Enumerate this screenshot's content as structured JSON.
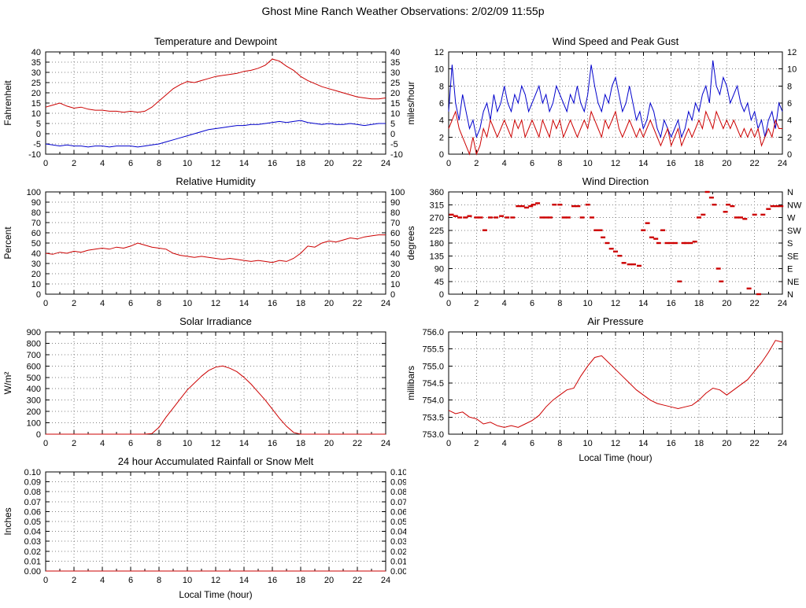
{
  "page_title": "Ghost Mine Ranch Weather Observations: 2/02/09 11:55p",
  "colors": {
    "red": "#cc0000",
    "blue": "#0000cc",
    "frame": "#000000",
    "grid": "#808080"
  },
  "chart_data": [
    {
      "id": "temperature",
      "type": "line",
      "title": "Temperature and Dewpoint",
      "ylabel": "Fahrenheit",
      "xlabel": "",
      "xlim": [
        0,
        24
      ],
      "ylim": [
        -10,
        40
      ],
      "xtickvals": [
        0,
        2,
        4,
        6,
        8,
        10,
        12,
        14,
        16,
        18,
        20,
        22,
        24
      ],
      "ytickvals": [
        -10,
        -5,
        0,
        5,
        10,
        15,
        20,
        25,
        30,
        35,
        40
      ],
      "yticklabels": [
        "-10",
        "-5",
        "0",
        "5",
        "10",
        "15",
        "20",
        "25",
        "30",
        "35",
        "40"
      ],
      "y2labels": [
        "-10",
        "-5",
        "0",
        "5",
        "10",
        "15",
        "20",
        "25",
        "30",
        "35",
        "40"
      ],
      "series": [
        {
          "name": "Temperature",
          "color": "#cc0000",
          "y": [
            13,
            14,
            15,
            13.5,
            12.5,
            13,
            12,
            11.5,
            11.5,
            11,
            11,
            10.5,
            11,
            10.5,
            11,
            13,
            16,
            19,
            22,
            24,
            25.5,
            25,
            26,
            27,
            28,
            28.5,
            29,
            29.5,
            30.5,
            31,
            32,
            33.5,
            36.5,
            35.5,
            33,
            31,
            28,
            26,
            24.5,
            23,
            22,
            21,
            20,
            19,
            18,
            17.5,
            17,
            17,
            17.5
          ]
        },
        {
          "name": "Dewpoint",
          "color": "#0000cc",
          "y": [
            -5,
            -5.5,
            -6,
            -5.5,
            -6,
            -6,
            -6.5,
            -6,
            -6,
            -6.5,
            -6,
            -6,
            -6,
            -6.5,
            -6,
            -5.5,
            -5,
            -4,
            -3,
            -2,
            -1,
            0,
            1,
            2,
            2.5,
            3,
            3.5,
            4,
            4,
            4.5,
            4.5,
            5,
            5.5,
            6,
            5.5,
            6,
            6.5,
            5.5,
            5,
            4.5,
            5,
            4.5,
            4.5,
            5,
            4.5,
            4,
            4.5,
            5,
            5
          ]
        }
      ]
    },
    {
      "id": "windspeed",
      "type": "line",
      "title": "Wind Speed and Peak Gust",
      "ylabel": "miles/hour",
      "xlabel": "",
      "xlim": [
        0,
        24
      ],
      "ylim": [
        0,
        12
      ],
      "xtickvals": [
        0,
        2,
        4,
        6,
        8,
        10,
        12,
        14,
        16,
        18,
        20,
        22,
        24
      ],
      "ytickvals": [
        0,
        2,
        4,
        6,
        8,
        10,
        12
      ],
      "yticklabels": [
        "0",
        "2",
        "4",
        "6",
        "8",
        "10",
        "12"
      ],
      "y2labels": [
        "0",
        "2",
        "4",
        "6",
        "8",
        "10",
        "12"
      ],
      "series": [
        {
          "name": "Peak Gust",
          "color": "#0000cc",
          "y": [
            5,
            10.5,
            6,
            4,
            7,
            5,
            3,
            4,
            2,
            3,
            5,
            6,
            4,
            7,
            5,
            6,
            8,
            6,
            5,
            7,
            6,
            8,
            7,
            5,
            6,
            7,
            8,
            6,
            7,
            5,
            6,
            8,
            7,
            6,
            5,
            7,
            6,
            8,
            6,
            5,
            7,
            10.5,
            8,
            6,
            5,
            7,
            6,
            8,
            9,
            7,
            5,
            6,
            8,
            6,
            4,
            5,
            3,
            4,
            6,
            5,
            3,
            2,
            4,
            3,
            2,
            3,
            4,
            2,
            3,
            5,
            4,
            6,
            5,
            7,
            8,
            6,
            11,
            8,
            7,
            9,
            8,
            6,
            7,
            8,
            6,
            5,
            6,
            4,
            5,
            3,
            4,
            2,
            4,
            5,
            3,
            6,
            5
          ]
        },
        {
          "name": "Wind Speed",
          "color": "#cc0000",
          "y": [
            3,
            4,
            5,
            3,
            2,
            1,
            0,
            2,
            0,
            1,
            3,
            2,
            4,
            3,
            2,
            3,
            4,
            3,
            2,
            4,
            3,
            4,
            2,
            3,
            4,
            3,
            2,
            4,
            3,
            2,
            4,
            3,
            4,
            2,
            3,
            4,
            3,
            2,
            3,
            4,
            3,
            5,
            4,
            3,
            2,
            4,
            3,
            4,
            5,
            3,
            2,
            3,
            4,
            3,
            2,
            3,
            2,
            3,
            4,
            3,
            2,
            1,
            2,
            3,
            1,
            2,
            3,
            1,
            2,
            3,
            2,
            3,
            4,
            3,
            5,
            4,
            3,
            5,
            4,
            3,
            4,
            3,
            4,
            3,
            2,
            3,
            2,
            3,
            2,
            3,
            1,
            2,
            3,
            2,
            4,
            3,
            3
          ]
        }
      ]
    },
    {
      "id": "humidity",
      "type": "line",
      "title": "Relative Humidity",
      "ylabel": "Percent",
      "xlabel": "",
      "xlim": [
        0,
        24
      ],
      "ylim": [
        0,
        100
      ],
      "xtickvals": [
        0,
        2,
        4,
        6,
        8,
        10,
        12,
        14,
        16,
        18,
        20,
        22,
        24
      ],
      "ytickvals": [
        0,
        10,
        20,
        30,
        40,
        50,
        60,
        70,
        80,
        90,
        100
      ],
      "yticklabels": [
        "0",
        "10",
        "20",
        "30",
        "40",
        "50",
        "60",
        "70",
        "80",
        "90",
        "100"
      ],
      "y2labels": [
        "0",
        "10",
        "20",
        "30",
        "40",
        "50",
        "60",
        "70",
        "80",
        "90",
        "100"
      ],
      "series": [
        {
          "name": "Relative Humidity",
          "color": "#cc0000",
          "y": [
            40,
            39,
            41,
            40,
            42,
            41,
            43,
            44,
            45,
            44,
            46,
            45,
            47,
            50,
            48,
            46,
            45,
            44,
            40,
            38,
            37,
            36,
            37,
            36,
            35,
            34,
            35,
            34,
            33,
            32,
            33,
            32,
            31,
            33,
            32,
            35,
            40,
            47,
            46,
            50,
            52,
            51,
            53,
            55,
            54,
            56,
            57,
            58,
            58
          ]
        }
      ]
    },
    {
      "id": "winddir",
      "type": "scatter",
      "title": "Wind Direction",
      "ylabel": "degrees",
      "xlabel": "",
      "xlim": [
        0,
        24
      ],
      "ylim": [
        0,
        360
      ],
      "xtickvals": [
        0,
        2,
        4,
        6,
        8,
        10,
        12,
        14,
        16,
        18,
        20,
        22,
        24
      ],
      "ytickvals": [
        0,
        45,
        90,
        135,
        180,
        225,
        270,
        315,
        360
      ],
      "yticklabels": [
        "0",
        "45",
        "90",
        "135",
        "180",
        "225",
        "270",
        "315",
        "360"
      ],
      "y2labels": [
        "N",
        "NE",
        "E",
        "SE",
        "S",
        "SW",
        "W",
        "NW",
        "N"
      ],
      "series": [
        {
          "name": "Wind Direction",
          "color": "#cc0000",
          "points": [
            [
              0.2,
              280
            ],
            [
              0.5,
              275
            ],
            [
              0.8,
              270
            ],
            [
              1.2,
              270
            ],
            [
              1.5,
              275
            ],
            [
              2.0,
              270
            ],
            [
              2.3,
              270
            ],
            [
              2.6,
              225
            ],
            [
              3.0,
              270
            ],
            [
              3.4,
              270
            ],
            [
              3.8,
              275
            ],
            [
              4.2,
              270
            ],
            [
              4.6,
              270
            ],
            [
              5.0,
              310
            ],
            [
              5.3,
              310
            ],
            [
              5.6,
              305
            ],
            [
              5.9,
              310
            ],
            [
              6.1,
              315
            ],
            [
              6.4,
              320
            ],
            [
              6.7,
              270
            ],
            [
              7.0,
              270
            ],
            [
              7.3,
              270
            ],
            [
              7.6,
              315
            ],
            [
              8.0,
              315
            ],
            [
              8.3,
              270
            ],
            [
              8.6,
              270
            ],
            [
              9.0,
              310
            ],
            [
              9.3,
              310
            ],
            [
              9.6,
              270
            ],
            [
              10.0,
              315
            ],
            [
              10.3,
              270
            ],
            [
              10.6,
              225
            ],
            [
              10.9,
              225
            ],
            [
              11.1,
              200
            ],
            [
              11.4,
              180
            ],
            [
              11.7,
              160
            ],
            [
              12.0,
              150
            ],
            [
              12.3,
              135
            ],
            [
              12.6,
              110
            ],
            [
              13.0,
              105
            ],
            [
              13.3,
              105
            ],
            [
              13.7,
              100
            ],
            [
              14.0,
              225
            ],
            [
              14.3,
              250
            ],
            [
              14.6,
              200
            ],
            [
              14.9,
              195
            ],
            [
              15.1,
              180
            ],
            [
              15.4,
              225
            ],
            [
              15.7,
              180
            ],
            [
              16.0,
              180
            ],
            [
              16.3,
              180
            ],
            [
              16.6,
              45
            ],
            [
              16.9,
              180
            ],
            [
              17.1,
              180
            ],
            [
              17.4,
              180
            ],
            [
              17.7,
              185
            ],
            [
              18.0,
              270
            ],
            [
              18.3,
              280
            ],
            [
              18.6,
              360
            ],
            [
              18.9,
              340
            ],
            [
              19.1,
              315
            ],
            [
              19.4,
              90
            ],
            [
              19.6,
              45
            ],
            [
              19.9,
              290
            ],
            [
              20.1,
              315
            ],
            [
              20.4,
              310
            ],
            [
              20.7,
              270
            ],
            [
              21.0,
              270
            ],
            [
              21.3,
              265
            ],
            [
              21.6,
              20
            ],
            [
              22.0,
              280
            ],
            [
              22.3,
              0
            ],
            [
              22.6,
              280
            ],
            [
              23.0,
              300
            ],
            [
              23.3,
              310
            ],
            [
              23.6,
              310
            ],
            [
              23.9,
              310
            ]
          ]
        }
      ]
    },
    {
      "id": "solar",
      "type": "line",
      "title": "Solar Irradiance",
      "ylabel": "W/m²",
      "xlabel": "",
      "xlim": [
        0,
        24
      ],
      "ylim": [
        0,
        900
      ],
      "xtickvals": [
        0,
        2,
        4,
        6,
        8,
        10,
        12,
        14,
        16,
        18,
        20,
        22,
        24
      ],
      "ytickvals": [
        0,
        100,
        200,
        300,
        400,
        500,
        600,
        700,
        800,
        900
      ],
      "yticklabels": [
        "0",
        "100",
        "200",
        "300",
        "400",
        "500",
        "600",
        "700",
        "800",
        "900"
      ],
      "series": [
        {
          "name": "Solar Irradiance",
          "color": "#cc0000",
          "y": [
            0,
            0,
            0,
            0,
            0,
            0,
            0,
            0,
            0,
            0,
            0,
            0,
            0,
            0,
            0,
            5,
            60,
            150,
            230,
            310,
            390,
            450,
            510,
            560,
            590,
            600,
            580,
            550,
            500,
            440,
            370,
            300,
            220,
            140,
            70,
            15,
            0,
            0,
            0,
            0,
            0,
            0,
            0,
            0,
            0,
            0,
            0,
            0,
            0
          ]
        }
      ]
    },
    {
      "id": "pressure",
      "type": "line",
      "title": "Air Pressure",
      "ylabel": "millibars",
      "xlabel": "Local Time (hour)",
      "xlim": [
        0,
        24
      ],
      "ylim": [
        753.0,
        756.0
      ],
      "xtickvals": [
        0,
        2,
        4,
        6,
        8,
        10,
        12,
        14,
        16,
        18,
        20,
        22,
        24
      ],
      "ytickvals": [
        753.0,
        753.5,
        754.0,
        754.5,
        755.0,
        755.5,
        756.0
      ],
      "yticklabels": [
        "753.0",
        "753.5",
        "754.0",
        "754.5",
        "755.0",
        "755.5",
        "756.0"
      ],
      "series": [
        {
          "name": "Air Pressure",
          "color": "#cc0000",
          "y": [
            753.7,
            753.6,
            753.65,
            753.5,
            753.45,
            753.3,
            753.35,
            753.25,
            753.2,
            753.25,
            753.2,
            753.3,
            753.4,
            753.55,
            753.8,
            754.0,
            754.15,
            754.3,
            754.35,
            754.7,
            755.0,
            755.25,
            755.3,
            755.1,
            754.9,
            754.7,
            754.5,
            754.3,
            754.15,
            754.0,
            753.9,
            753.85,
            753.8,
            753.75,
            753.8,
            753.85,
            754.0,
            754.2,
            754.35,
            754.3,
            754.15,
            754.3,
            754.45,
            754.6,
            754.85,
            755.1,
            755.4,
            755.75,
            755.7
          ]
        }
      ]
    },
    {
      "id": "rainfall",
      "type": "line",
      "title": "24 hour Accumulated Rainfall or Snow Melt",
      "ylabel": "Inches",
      "xlabel": "Local Time (hour)",
      "xlim": [
        0,
        24
      ],
      "ylim": [
        0,
        0.1
      ],
      "xtickvals": [
        0,
        2,
        4,
        6,
        8,
        10,
        12,
        14,
        16,
        18,
        20,
        22,
        24
      ],
      "ytickvals": [
        0,
        0.01,
        0.02,
        0.03,
        0.04,
        0.05,
        0.06,
        0.07,
        0.08,
        0.09,
        0.1
      ],
      "yticklabels": [
        "0.00",
        "0.01",
        "0.02",
        "0.03",
        "0.04",
        "0.05",
        "0.06",
        "0.07",
        "0.08",
        "0.09",
        "0.10"
      ],
      "y2labels": [
        "0.00",
        "0.01",
        "0.02",
        "0.03",
        "0.04",
        "0.05",
        "0.06",
        "0.07",
        "0.08",
        "0.09",
        "0.10"
      ],
      "series": [
        {
          "name": "Accumulated Rainfall",
          "color": "#cc0000",
          "y": [
            0,
            0
          ]
        }
      ]
    }
  ]
}
